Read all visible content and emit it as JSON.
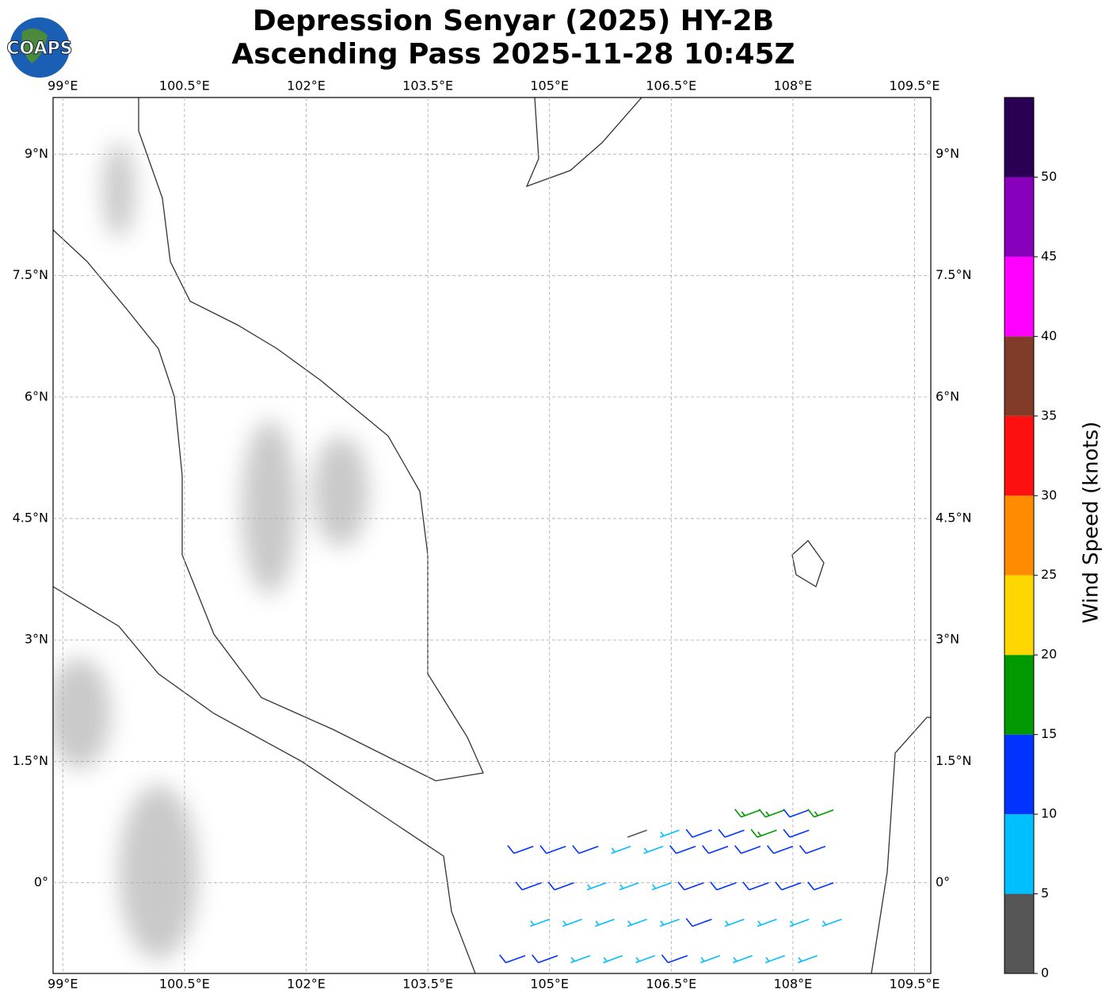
{
  "chart_data": {
    "type": "barbs",
    "title": "Depression Senyar (2025) HY-2B",
    "subtitle": "Ascending Pass 2025-11-28 10:45Z",
    "logo_text": "COAPS",
    "xlim": [
      98.88,
      109.7
    ],
    "ylim": [
      -1.12,
      9.7
    ],
    "xticks": [
      {
        "value": 99,
        "label": "99°E"
      },
      {
        "value": 100.5,
        "label": "100.5°E"
      },
      {
        "value": 102,
        "label": "102°E"
      },
      {
        "value": 103.5,
        "label": "103.5°E"
      },
      {
        "value": 105,
        "label": "105°E"
      },
      {
        "value": 106.5,
        "label": "106.5°E"
      },
      {
        "value": 108,
        "label": "108°E"
      },
      {
        "value": 109.5,
        "label": "109.5°E"
      }
    ],
    "yticks": [
      {
        "value": 0,
        "label": "0°"
      },
      {
        "value": 1.5,
        "label": "1.5°N"
      },
      {
        "value": 3,
        "label": "3°N"
      },
      {
        "value": 4.5,
        "label": "4.5°N"
      },
      {
        "value": 6,
        "label": "6°N"
      },
      {
        "value": 7.5,
        "label": "7.5°N"
      },
      {
        "value": 9,
        "label": "9°N"
      }
    ],
    "grid": true,
    "barb_from_deg": 250,
    "barbs": [
      {
        "lon": 104.8,
        "lat": 0.45,
        "speed": 12
      },
      {
        "lon": 105.2,
        "lat": 0.45,
        "speed": 12
      },
      {
        "lon": 105.6,
        "lat": 0.45,
        "speed": 11
      },
      {
        "lon": 106.0,
        "lat": 0.45,
        "speed": 8
      },
      {
        "lon": 106.4,
        "lat": 0.45,
        "speed": 7
      },
      {
        "lon": 106.8,
        "lat": 0.45,
        "speed": 11
      },
      {
        "lon": 107.2,
        "lat": 0.45,
        "speed": 12
      },
      {
        "lon": 107.6,
        "lat": 0.45,
        "speed": 13
      },
      {
        "lon": 108.0,
        "lat": 0.45,
        "speed": 12
      },
      {
        "lon": 108.4,
        "lat": 0.45,
        "speed": 11
      },
      {
        "lon": 104.9,
        "lat": 0.0,
        "speed": 13
      },
      {
        "lon": 105.3,
        "lat": 0.0,
        "speed": 11
      },
      {
        "lon": 105.7,
        "lat": 0.0,
        "speed": 8
      },
      {
        "lon": 106.1,
        "lat": 0.0,
        "speed": 7
      },
      {
        "lon": 106.5,
        "lat": 0.0,
        "speed": 9
      },
      {
        "lon": 106.9,
        "lat": 0.0,
        "speed": 11
      },
      {
        "lon": 107.3,
        "lat": 0.0,
        "speed": 12
      },
      {
        "lon": 107.7,
        "lat": 0.0,
        "speed": 12
      },
      {
        "lon": 108.1,
        "lat": 0.0,
        "speed": 13
      },
      {
        "lon": 108.5,
        "lat": 0.0,
        "speed": 12
      },
      {
        "lon": 105.0,
        "lat": -0.45,
        "speed": 9
      },
      {
        "lon": 105.4,
        "lat": -0.45,
        "speed": 8
      },
      {
        "lon": 105.8,
        "lat": -0.45,
        "speed": 7
      },
      {
        "lon": 106.2,
        "lat": -0.45,
        "speed": 7
      },
      {
        "lon": 106.6,
        "lat": -0.45,
        "speed": 9
      },
      {
        "lon": 107.0,
        "lat": -0.45,
        "speed": 12
      },
      {
        "lon": 107.4,
        "lat": -0.45,
        "speed": 8
      },
      {
        "lon": 107.8,
        "lat": -0.45,
        "speed": 7
      },
      {
        "lon": 108.2,
        "lat": -0.45,
        "speed": 8
      },
      {
        "lon": 108.6,
        "lat": -0.45,
        "speed": 9
      },
      {
        "lon": 104.7,
        "lat": -0.9,
        "speed": 13
      },
      {
        "lon": 105.1,
        "lat": -0.9,
        "speed": 12
      },
      {
        "lon": 105.5,
        "lat": -0.9,
        "speed": 8
      },
      {
        "lon": 105.9,
        "lat": -0.9,
        "speed": 7
      },
      {
        "lon": 106.3,
        "lat": -0.9,
        "speed": 8
      },
      {
        "lon": 106.7,
        "lat": -0.9,
        "speed": 12
      },
      {
        "lon": 107.1,
        "lat": -0.9,
        "speed": 9
      },
      {
        "lon": 107.5,
        "lat": -0.9,
        "speed": 7
      },
      {
        "lon": 107.9,
        "lat": -0.9,
        "speed": 8
      },
      {
        "lon": 108.3,
        "lat": -0.9,
        "speed": 9
      },
      {
        "lon": 107.6,
        "lat": 0.9,
        "speed": 17
      },
      {
        "lon": 107.9,
        "lat": 0.9,
        "speed": 17
      },
      {
        "lon": 108.2,
        "lat": 0.9,
        "speed": 13
      },
      {
        "lon": 108.5,
        "lat": 0.9,
        "speed": 18
      },
      {
        "lon": 106.2,
        "lat": 0.65,
        "speed": 4
      },
      {
        "lon": 106.6,
        "lat": 0.65,
        "speed": 7
      },
      {
        "lon": 107.0,
        "lat": 0.65,
        "speed": 12
      },
      {
        "lon": 107.4,
        "lat": 0.65,
        "speed": 12
      },
      {
        "lon": 107.8,
        "lat": 0.65,
        "speed": 17
      },
      {
        "lon": 108.2,
        "lat": 0.65,
        "speed": 12
      }
    ],
    "colorbar": {
      "label": "Wind Speed (knots)",
      "lim": [
        0,
        55
      ],
      "ticks": [
        0,
        5,
        10,
        15,
        20,
        25,
        30,
        35,
        40,
        45,
        50
      ],
      "colors": [
        "#555555",
        "#00bfff",
        "#0033ff",
        "#009900",
        "#ffd700",
        "#ff8c00",
        "#ff1010",
        "#803c28",
        "#ff00ff",
        "#8800bb",
        "#2a0055"
      ]
    }
  }
}
